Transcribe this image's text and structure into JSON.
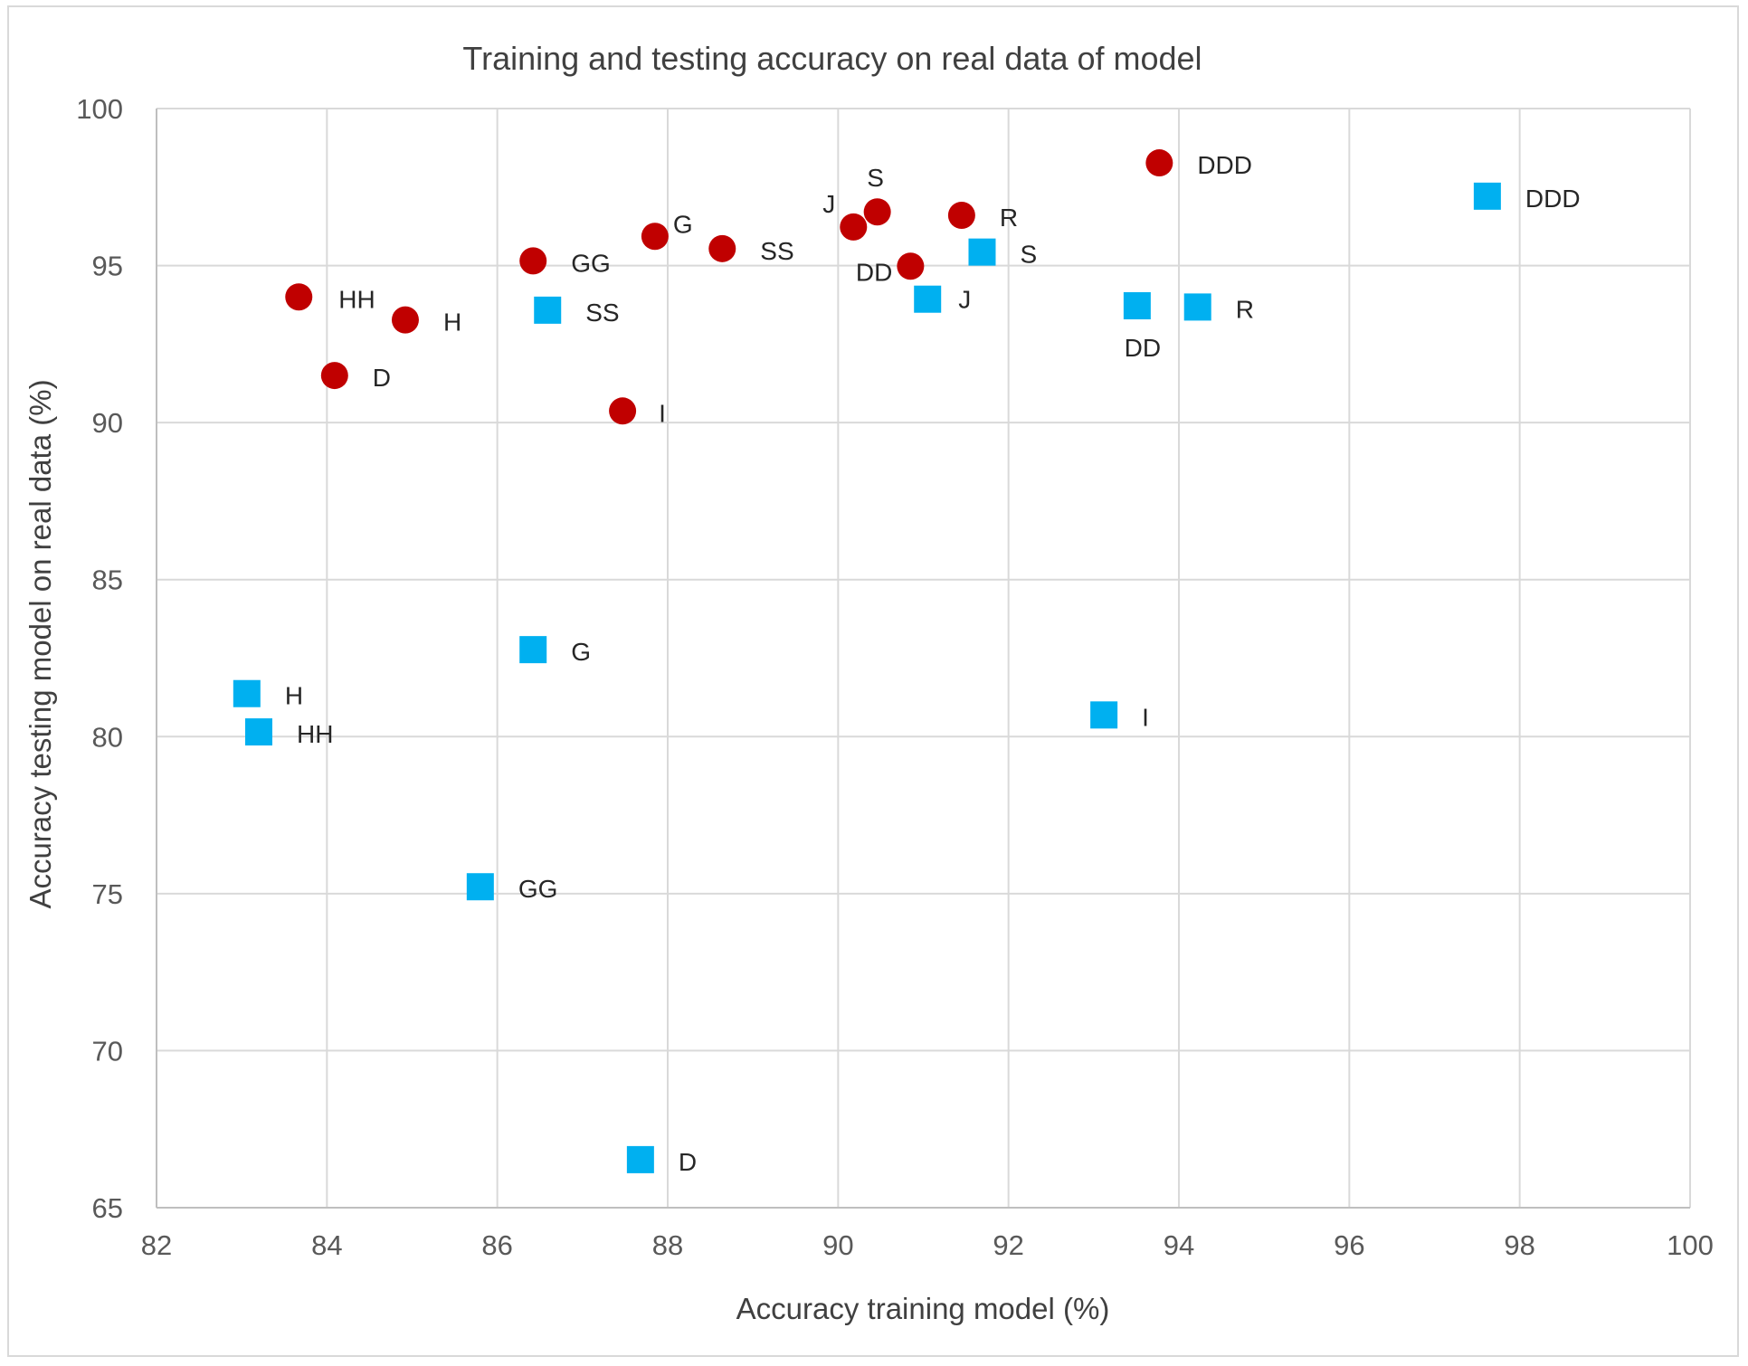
{
  "chart_data": {
    "type": "scatter",
    "title": "Training and testing accuracy on real data of model",
    "xlabel": "Accuracy training model (%)",
    "ylabel": "Accuracy testing model on real data (%)",
    "xlim": [
      82,
      100
    ],
    "ylim": [
      65,
      100
    ],
    "xticks": [
      "82",
      "84",
      "86",
      "88",
      "90",
      "92",
      "94",
      "96",
      "98",
      "100"
    ],
    "yticks": [
      "65",
      "70",
      "75",
      "80",
      "85",
      "90",
      "95",
      "100"
    ],
    "grid": true,
    "legend": "none",
    "series": [
      {
        "marker": "circle",
        "color": "#c00000",
        "points": [
          {
            "label": "HH",
            "x": 83.67,
            "y": 94.0
          },
          {
            "label": "H",
            "x": 84.92,
            "y": 93.27
          },
          {
            "label": "D",
            "x": 84.09,
            "y": 91.5
          },
          {
            "label": "GG",
            "x": 86.42,
            "y": 95.15
          },
          {
            "label": "G",
            "x": 87.85,
            "y": 95.93
          },
          {
            "label": "SS",
            "x": 88.64,
            "y": 95.54
          },
          {
            "label": "I",
            "x": 87.47,
            "y": 90.37
          },
          {
            "label": "J",
            "x": 90.18,
            "y": 96.23
          },
          {
            "label": "S",
            "x": 90.46,
            "y": 96.71
          },
          {
            "label": "DD",
            "x": 90.85,
            "y": 94.98
          },
          {
            "label": "R",
            "x": 91.45,
            "y": 96.6
          },
          {
            "label": "DDD",
            "x": 93.77,
            "y": 98.27
          }
        ]
      },
      {
        "marker": "square",
        "color": "#00b0f0",
        "points": [
          {
            "label": "SS",
            "x": 86.59,
            "y": 93.58
          },
          {
            "label": "G",
            "x": 86.42,
            "y": 82.77
          },
          {
            "label": "H",
            "x": 83.06,
            "y": 81.37
          },
          {
            "label": "HH",
            "x": 83.2,
            "y": 80.15
          },
          {
            "label": "GG",
            "x": 85.8,
            "y": 75.22
          },
          {
            "label": "D",
            "x": 87.68,
            "y": 66.53
          },
          {
            "label": "J",
            "x": 91.05,
            "y": 93.93
          },
          {
            "label": "S",
            "x": 91.69,
            "y": 95.43
          },
          {
            "label": "DD",
            "x": 93.51,
            "y": 93.72
          },
          {
            "label": "R",
            "x": 94.22,
            "y": 93.68
          },
          {
            "label": "I",
            "x": 93.12,
            "y": 80.69
          },
          {
            "label": "DDD",
            "x": 97.62,
            "y": 97.21
          }
        ]
      }
    ]
  }
}
